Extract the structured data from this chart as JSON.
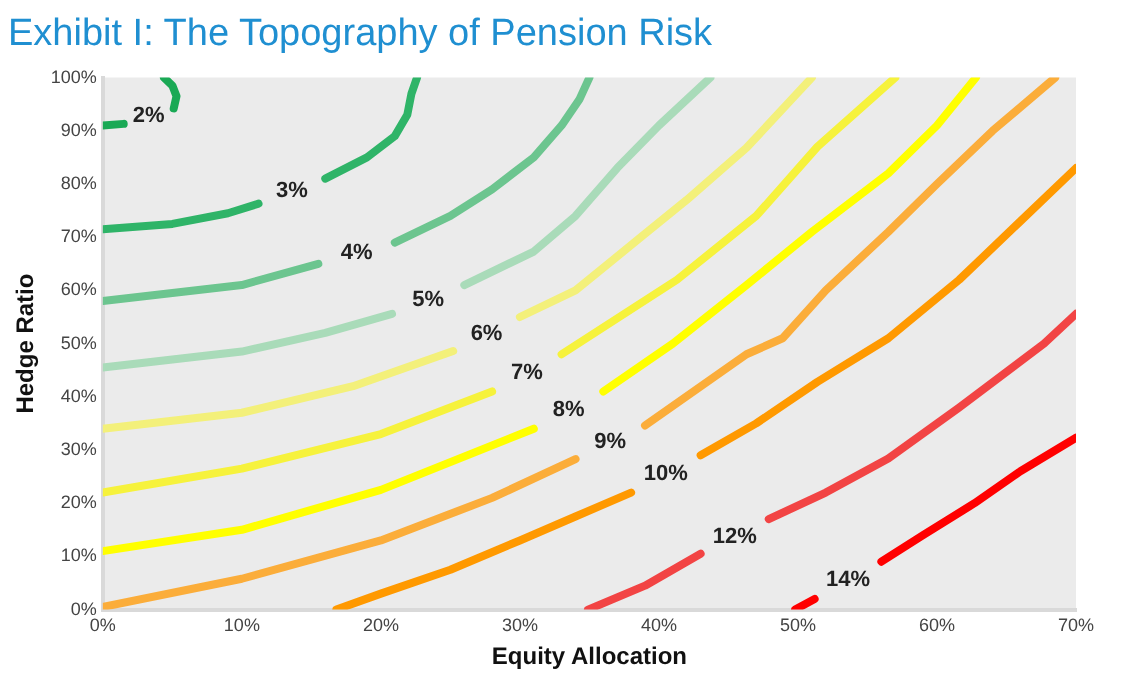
{
  "chart_data": {
    "type": "line",
    "title": "Exhibit I: The Topography of Pension Risk",
    "xlabel": "Equity Allocation",
    "ylabel": "Hedge Ratio",
    "xlim": [
      0,
      70
    ],
    "ylim": [
      0,
      100
    ],
    "xticks": [
      {
        "value": 0,
        "label": "0%"
      },
      {
        "value": 10,
        "label": "10%"
      },
      {
        "value": 20,
        "label": "20%"
      },
      {
        "value": 30,
        "label": "30%"
      },
      {
        "value": 40,
        "label": "40%"
      },
      {
        "value": 50,
        "label": "50%"
      },
      {
        "value": 60,
        "label": "60%"
      },
      {
        "value": 70,
        "label": "70%"
      }
    ],
    "yticks": [
      {
        "value": 0,
        "label": "0%"
      },
      {
        "value": 10,
        "label": "10%"
      },
      {
        "value": 20,
        "label": "20%"
      },
      {
        "value": 30,
        "label": "30%"
      },
      {
        "value": 40,
        "label": "40%"
      },
      {
        "value": 50,
        "label": "50%"
      },
      {
        "value": 60,
        "label": "60%"
      },
      {
        "value": 70,
        "label": "70%"
      },
      {
        "value": 80,
        "label": "80%"
      },
      {
        "value": 90,
        "label": "90%"
      },
      {
        "value": 100,
        "label": "100%"
      }
    ],
    "grid": false,
    "series": [
      {
        "name": "2%",
        "color": "#1aa955",
        "x": [
          0,
          1.5,
          3.3,
          5.1,
          5.3,
          5,
          4.4
        ],
        "values": [
          91,
          91.3,
          null,
          94.2,
          96.5,
          98.5,
          100
        ]
      },
      {
        "name": "3%",
        "color": "#2fb468",
        "x": [
          0,
          5,
          9,
          11.2,
          13.6,
          16,
          19,
          21,
          21.9,
          22.2,
          22.6
        ],
        "values": [
          71.5,
          72.5,
          74.5,
          76.3,
          null,
          81,
          85,
          89,
          93,
          97,
          100
        ]
      },
      {
        "name": "4%",
        "color": "#6cc58f",
        "x": [
          0,
          10,
          15.5,
          18.5,
          21,
          25,
          28,
          31,
          33,
          34.3,
          35
        ],
        "values": [
          58,
          61,
          65,
          null,
          69,
          74,
          79,
          85,
          91,
          96,
          100
        ]
      },
      {
        "name": "5%",
        "color": "#a9dbb9",
        "x": [
          0,
          10,
          16,
          20.8,
          23.5,
          26,
          31,
          34,
          37,
          40,
          43.7
        ],
        "values": [
          45.5,
          48.5,
          52,
          55.6,
          null,
          61,
          67.3,
          74,
          83,
          91,
          100
        ]
      },
      {
        "name": "6%",
        "color": "#f3f07a",
        "x": [
          0,
          10,
          18,
          25.2,
          27.5,
          30,
          34,
          38.7,
          42,
          46.3,
          51
        ],
        "values": [
          34,
          37,
          42,
          48.6,
          null,
          55,
          60,
          70,
          77,
          86.8,
          100
        ]
      },
      {
        "name": "7%",
        "color": "#f6f23c",
        "x": [
          0,
          10,
          20,
          28,
          30.9,
          33,
          41.3,
          47,
          51.4,
          57
        ],
        "values": [
          22,
          26.5,
          33,
          41,
          null,
          48,
          62,
          74,
          87,
          100
        ]
      },
      {
        "name": "8%",
        "color": "#ffff00",
        "x": [
          0,
          10,
          20,
          31,
          33.6,
          36,
          41,
          46.3,
          51,
          56.5,
          60,
          62.8
        ],
        "values": [
          11,
          15,
          22.5,
          34,
          null,
          41,
          50,
          61,
          71,
          82,
          91,
          100
        ]
      },
      {
        "name": "9%",
        "color": "#fbad3a",
        "x": [
          0,
          10,
          20,
          28,
          34,
          36.7,
          39,
          46.3,
          48.9,
          52,
          56.5,
          60,
          64,
          68.5
        ],
        "values": [
          0.5,
          5.8,
          13,
          21,
          28.3,
          null,
          34.6,
          48,
          51,
          60,
          71,
          80,
          90,
          100
        ]
      },
      {
        "name": "10%",
        "color": "#ff9900",
        "x": [
          16.8,
          20,
          25,
          30,
          34,
          38,
          40.5,
          43,
          47,
          51.4,
          56.5,
          61.6,
          66,
          70
        ],
        "values": [
          0,
          3,
          7.5,
          13,
          17.5,
          22,
          null,
          29,
          35,
          42.8,
          51,
          62,
          73,
          83
        ]
      },
      {
        "name": "12%",
        "color": "#f24444",
        "x": [
          34.9,
          39,
          43,
          46,
          47.9,
          52,
          56.5,
          61.6,
          67.7,
          70
        ],
        "values": [
          0,
          4.5,
          10.5,
          null,
          17,
          22,
          28.4,
          38,
          50,
          55.6
        ]
      },
      {
        "name": "14%",
        "color": "#ff0000",
        "x": [
          49.8,
          51.2,
          54.3,
          56,
          59,
          62.7,
          66,
          70
        ],
        "values": [
          0,
          2,
          null,
          9,
          14,
          20,
          26,
          32.3
        ]
      }
    ]
  }
}
